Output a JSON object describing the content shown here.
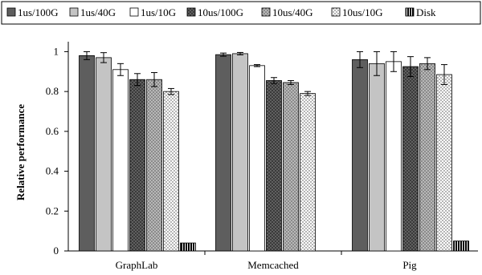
{
  "chart_data": {
    "type": "bar",
    "title": "",
    "xlabel": "",
    "ylabel": "Relative performance",
    "ylim": [
      0,
      1.05
    ],
    "yticks": [
      "0",
      "0.2",
      "0.4",
      "0.6",
      "0.8",
      "1"
    ],
    "ytick_values": [
      0,
      0.2,
      0.4,
      0.6,
      0.8,
      1.0
    ],
    "categories": [
      "GraphLab",
      "Memcached",
      "Pig"
    ],
    "legend_position": "top",
    "grid": false,
    "error_bars": true,
    "series": [
      {
        "name": "1us/100G",
        "pattern": "solid-dark",
        "color": "#5e5e5e",
        "values": [
          0.98,
          0.985,
          0.96
        ],
        "errors": [
          0.02,
          0.008,
          0.04
        ]
      },
      {
        "name": "1us/40G",
        "pattern": "solid-light",
        "color": "#c4c4c4",
        "values": [
          0.97,
          0.99,
          0.94
        ],
        "errors": [
          0.025,
          0.006,
          0.06
        ]
      },
      {
        "name": "1us/10G",
        "pattern": "white",
        "color": "#ffffff",
        "values": [
          0.91,
          0.93,
          0.95
        ],
        "errors": [
          0.03,
          0.005,
          0.05
        ]
      },
      {
        "name": "10us/100G",
        "pattern": "dark-dots",
        "color": "#4a4a4a",
        "values": [
          0.86,
          0.855,
          0.925
        ],
        "errors": [
          0.03,
          0.015,
          0.05
        ]
      },
      {
        "name": "10us/40G",
        "pattern": "medium-dots",
        "color": "#9a9a9a",
        "values": [
          0.86,
          0.845,
          0.94
        ],
        "errors": [
          0.035,
          0.01,
          0.03
        ]
      },
      {
        "name": "10us/10G",
        "pattern": "light-dots",
        "color": "#d6d6d6",
        "values": [
          0.8,
          0.79,
          0.885
        ],
        "errors": [
          0.015,
          0.01,
          0.05
        ]
      },
      {
        "name": "Disk",
        "pattern": "vertical-stripes",
        "color": "#000000",
        "values": [
          0.04,
          null,
          0.05
        ],
        "errors": [
          0,
          0,
          0
        ]
      }
    ]
  }
}
